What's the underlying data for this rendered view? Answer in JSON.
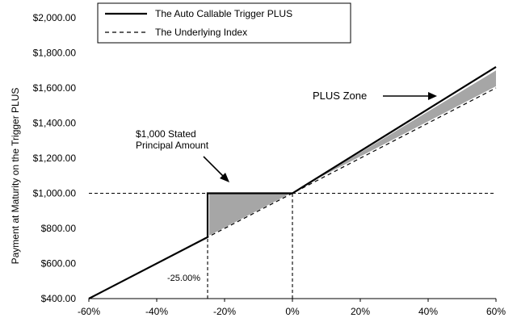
{
  "chart_data": {
    "type": "line",
    "title": "",
    "xlabel": "",
    "ylabel": "Payment at Maturity on the Trigger PLUS",
    "xlim": [
      -0.6,
      0.6
    ],
    "ylim": [
      400,
      2000
    ],
    "x_ticks": [
      -0.6,
      -0.4,
      -0.2,
      0,
      0.2,
      0.4,
      0.6
    ],
    "x_tick_labels": [
      "-60%",
      "-40%",
      "-20%",
      "0%",
      "20%",
      "40%",
      "60%"
    ],
    "y_ticks": [
      400,
      600,
      800,
      1000,
      1200,
      1400,
      1600,
      1800,
      2000
    ],
    "y_tick_labels": [
      "$400.00",
      "$600.00",
      "$800.00",
      "$1,000.00",
      "$1,200.00",
      "$1,400.00",
      "$1,600.00",
      "$1,800.00",
      "$2,000.00"
    ],
    "grid": false,
    "legend_position": "top-left",
    "series": [
      {
        "name": "The Auto Callable Trigger PLUS",
        "style": "solid",
        "color": "#000000",
        "points": [
          [
            -0.6,
            400
          ],
          [
            -0.25,
            750
          ],
          [
            -0.25,
            1000
          ],
          [
            0,
            1000
          ],
          [
            0.6,
            1720
          ]
        ]
      },
      {
        "name": "The Underlying Index",
        "style": "dashed",
        "color": "#000000",
        "points": [
          [
            -0.6,
            400
          ],
          [
            0.6,
            1600
          ]
        ]
      }
    ],
    "shaded_regions": [
      {
        "color": "#a6a6a6",
        "polygon": [
          [
            -0.245,
            760
          ],
          [
            -0.245,
            1000
          ],
          [
            -0.005,
            1000
          ]
        ]
      },
      {
        "color": "#a6a6a6",
        "polygon": [
          [
            0.07,
            1080
          ],
          [
            0.6,
            1700
          ],
          [
            0.6,
            1610
          ]
        ]
      }
    ],
    "reference_lines": [
      {
        "axis": "y",
        "value": 1000,
        "from": -0.6,
        "to": 0.6,
        "style": "dashed"
      },
      {
        "axis": "x",
        "value": 0,
        "from": 400,
        "to": 1000,
        "style": "dashed"
      },
      {
        "axis": "x",
        "value": -0.25,
        "from": 400,
        "to": 750,
        "style": "dashed"
      }
    ],
    "annotations": {
      "principal_line1": "$1,000 Stated",
      "principal_line2": "Principal Amount",
      "plus_zone": "PLUS Zone",
      "trigger_label": "-25.00%"
    }
  }
}
